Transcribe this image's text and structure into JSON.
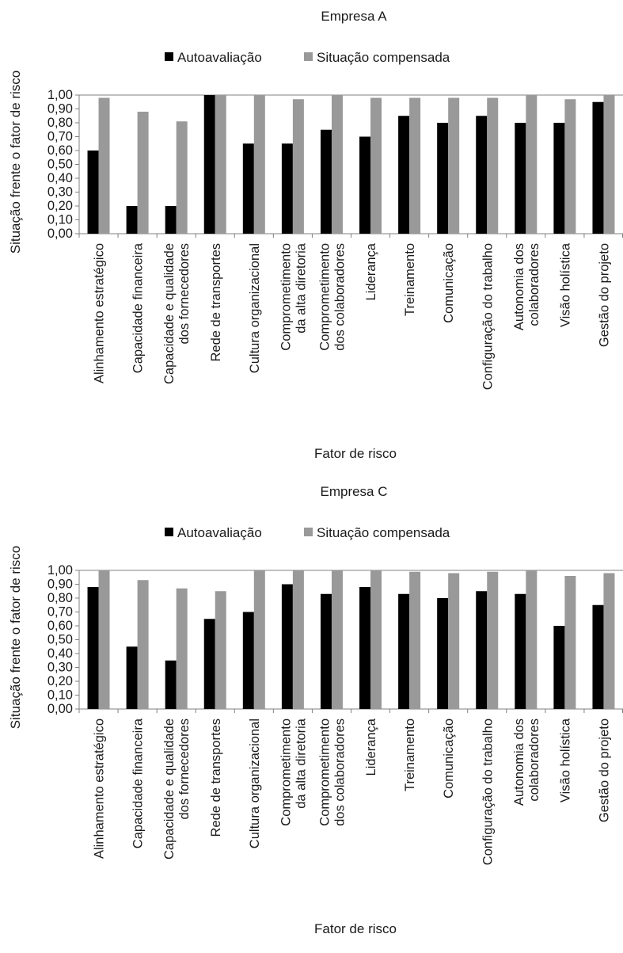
{
  "colors": {
    "autoavaliacao": "#000000",
    "situacao_compensada": "#999999",
    "axis": "#808080",
    "grid": "#808080",
    "text": "#1a1a1a"
  },
  "chart_data": [
    {
      "type": "bar",
      "title": "Empresa A",
      "xlabel": "Fator de risco",
      "ylabel": "Situação frente o fator de risco",
      "ylim": [
        0,
        1
      ],
      "ytick_step": 0.1,
      "yticks": [
        "0,00",
        "0,10",
        "0,20",
        "0,30",
        "0,40",
        "0,50",
        "0,60",
        "0,70",
        "0,80",
        "0,90",
        "1,00"
      ],
      "grid": "top line only",
      "legend": "top-center",
      "categories": [
        [
          "Alinhamento estratégico"
        ],
        [
          "Capacidade financeira"
        ],
        [
          "Capacidade e qualidade",
          "dos fornecedores"
        ],
        [
          "Rede de transportes"
        ],
        [
          "Cultura organizacional"
        ],
        [
          "Comprometimento",
          "da alta diretoria"
        ],
        [
          "Comprometimento",
          "dos colaboradores"
        ],
        [
          "Liderança"
        ],
        [
          "Treinamento"
        ],
        [
          "Comunicação"
        ],
        [
          "Configuração do trabalho"
        ],
        [
          "Autonomia dos",
          "colaboradores"
        ],
        [
          "Visão holística"
        ],
        [
          "Gestão do projeto"
        ]
      ],
      "series": [
        {
          "name": "Autoavaliação",
          "values": [
            0.6,
            0.2,
            0.2,
            1.0,
            0.65,
            0.65,
            0.75,
            0.7,
            0.85,
            0.8,
            0.85,
            0.8,
            0.8,
            0.95
          ]
        },
        {
          "name": "Situação compensada",
          "values": [
            0.98,
            0.88,
            0.81,
            1.0,
            1.0,
            0.97,
            1.0,
            0.98,
            0.98,
            0.98,
            0.98,
            1.0,
            0.97,
            1.0
          ]
        }
      ]
    },
    {
      "type": "bar",
      "title": "Empresa C",
      "xlabel": "Fator de risco",
      "ylabel": "Situação frente o fator de risco",
      "ylim": [
        0,
        1
      ],
      "ytick_step": 0.1,
      "yticks": [
        "0,00",
        "0,10",
        "0,20",
        "0,30",
        "0,40",
        "0,50",
        "0,60",
        "0,70",
        "0,80",
        "0,90",
        "1,00"
      ],
      "grid": "top line only",
      "legend": "top-center",
      "categories": [
        [
          "Alinhamento estratégico"
        ],
        [
          "Capacidade financeira"
        ],
        [
          "Capacidade e qualidade",
          "dos fornecedores"
        ],
        [
          "Rede de transportes"
        ],
        [
          "Cultura organizacional"
        ],
        [
          "Comprometimento",
          "da alta diretoria"
        ],
        [
          "Comprometimento",
          "dos colaboradores"
        ],
        [
          "Liderança"
        ],
        [
          "Treinamento"
        ],
        [
          "Comunicação"
        ],
        [
          "Configuração do trabalho"
        ],
        [
          "Autonomia dos",
          "colaboradores"
        ],
        [
          "Visão holística"
        ],
        [
          "Gestão do projeto"
        ]
      ],
      "series": [
        {
          "name": "Autoavaliação",
          "values": [
            0.88,
            0.45,
            0.35,
            0.65,
            0.7,
            0.9,
            0.83,
            0.88,
            0.83,
            0.8,
            0.85,
            0.83,
            0.6,
            0.75
          ]
        },
        {
          "name": "Situação compensada",
          "values": [
            1.0,
            0.93,
            0.87,
            0.85,
            1.0,
            1.0,
            1.0,
            1.0,
            0.99,
            0.98,
            0.99,
            1.0,
            0.96,
            0.98
          ]
        }
      ]
    }
  ]
}
